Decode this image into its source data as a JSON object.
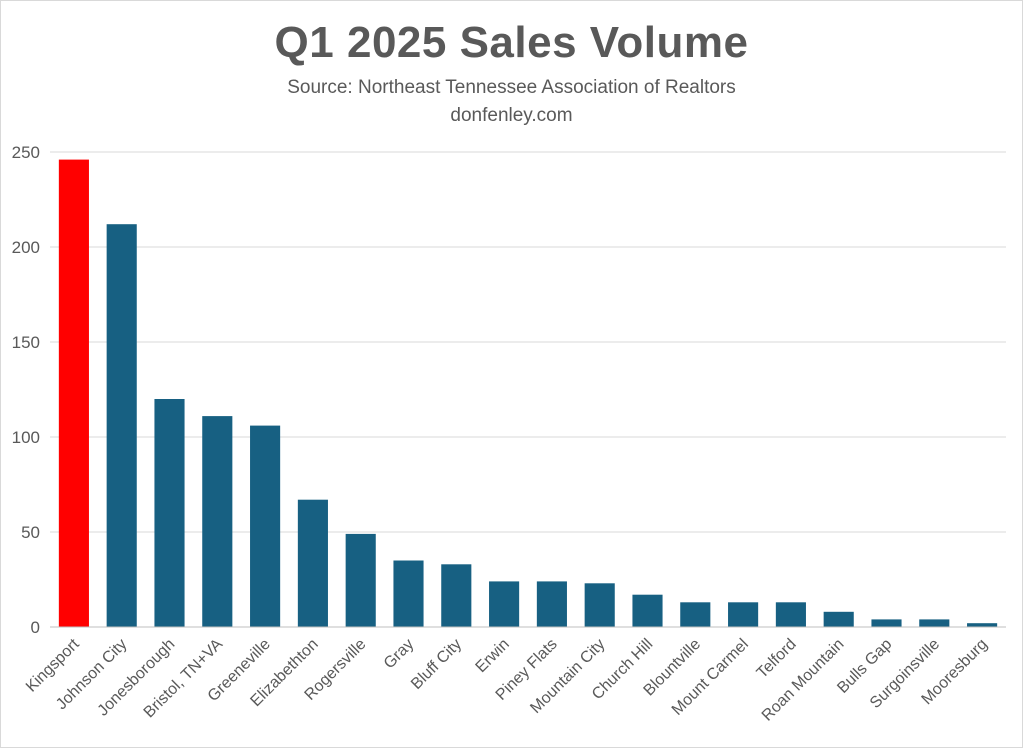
{
  "chart_data": {
    "type": "bar",
    "title": "Q1 2025 Sales Volume",
    "subtitle": "Source: Northeast Tennessee Association of Realtors",
    "subtitle2": "donfenley.com",
    "categories": [
      "Kingsport",
      "Johnson City",
      "Jonesborough",
      "Bristol, TN+VA",
      "Greeneville",
      "Elizabethton",
      "Rogersville",
      "Gray",
      "Bluff City",
      "Erwin",
      "Piney Flats",
      "Mountain City",
      "Church Hill",
      "Blountville",
      "Mount Carmel",
      "Telford",
      "Roan Mountain",
      "Bulls Gap",
      "Surgoinsville",
      "Mooresburg"
    ],
    "values": [
      246,
      212,
      120,
      111,
      106,
      67,
      49,
      35,
      33,
      24,
      24,
      23,
      17,
      13,
      13,
      13,
      8,
      4,
      4,
      2
    ],
    "highlight_index": 0,
    "colors": {
      "highlight": "#ff0000",
      "bar": "#176082",
      "grid": "#d9d9d9",
      "text": "#595959"
    },
    "xlabel": "",
    "ylabel": "",
    "ylim": [
      0,
      250
    ],
    "yticks": [
      0,
      50,
      100,
      150,
      200,
      250
    ],
    "grid": true,
    "legend": "none"
  }
}
